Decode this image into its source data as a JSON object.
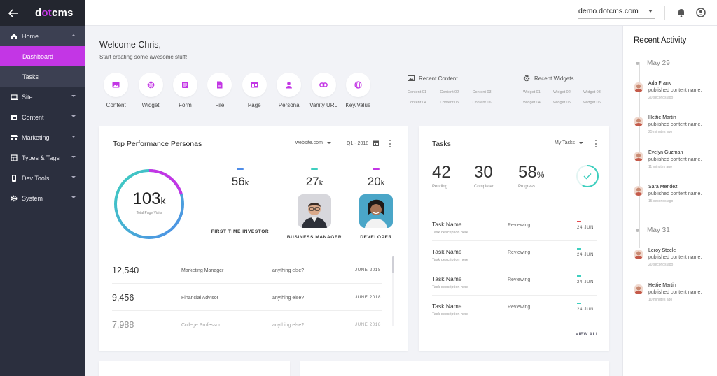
{
  "colors": {
    "accent": "#c336e5",
    "sidebar": "#2b2f3e",
    "teal": "#3ecfbf",
    "blue": "#4f8de8",
    "red": "#e5484d"
  },
  "sidebar": {
    "logo_prefix": "d",
    "logo_dot": "ot",
    "logo_suffix": "cms",
    "items": [
      {
        "label": "Home",
        "icon": "home-icon"
      },
      {
        "label": "Site",
        "icon": "monitor-icon"
      },
      {
        "label": "Content",
        "icon": "folder-icon"
      },
      {
        "label": "Marketing",
        "icon": "store-icon"
      },
      {
        "label": "Types & Tags",
        "icon": "layers-icon"
      },
      {
        "label": "Dev Tools",
        "icon": "device-icon"
      },
      {
        "label": "System",
        "icon": "gear-icon"
      }
    ],
    "sub_items": [
      {
        "label": "Dashboard"
      },
      {
        "label": "Tasks"
      }
    ]
  },
  "header": {
    "site": "demo.dotcms.com"
  },
  "welcome": {
    "title": "Welcome Chris,",
    "subtitle": "Start creating some awesome stuff!"
  },
  "tools": [
    {
      "label": "Content",
      "icon": "image-icon"
    },
    {
      "label": "Widget",
      "icon": "gear-icon"
    },
    {
      "label": "Form",
      "icon": "form-icon"
    },
    {
      "label": "File",
      "icon": "file-icon"
    },
    {
      "label": "Page",
      "icon": "page-icon"
    },
    {
      "label": "Persona",
      "icon": "person-icon"
    },
    {
      "label": "Vanity URL",
      "icon": "link-icon"
    },
    {
      "label": "Key/Value",
      "icon": "globe-icon"
    }
  ],
  "recent_content": {
    "title": "Recent Content",
    "items": [
      "Content 01",
      "Content 02",
      "Content 03",
      "Content 04",
      "Content 05",
      "Content 06"
    ]
  },
  "recent_widgets": {
    "title": "Recent Widgets",
    "items": [
      "Widget 01",
      "Widget 02",
      "Widget 03",
      "Widget 04",
      "Widget 05",
      "Widget 06"
    ]
  },
  "personas": {
    "title": "Top Performance Personas",
    "filter_site": "website.com",
    "filter_period": "Q1 - 2018",
    "total_value": "103",
    "total_unit": "k",
    "total_label": "Total Page Visits",
    "list": [
      {
        "value": "56",
        "unit": "k",
        "name": "FIRST TIME INVESTOR",
        "color": "#4f8de8"
      },
      {
        "value": "27",
        "unit": "k",
        "name": "BUSINESS MANAGER",
        "color": "#3ecfbf"
      },
      {
        "value": "20",
        "unit": "k",
        "name": "DEVELOPER",
        "color": "#c336e5"
      }
    ],
    "table": [
      {
        "value": "12,540",
        "role": "Marketing Manager",
        "note": "anything else?",
        "date": "JUNE 2018"
      },
      {
        "value": "9,456",
        "role": "Financial Advisor",
        "note": "anything else?",
        "date": "JUNE 2018"
      },
      {
        "value": "7,988",
        "role": "College Professor",
        "note": "anything else?",
        "date": "JUNE 2018"
      }
    ]
  },
  "tasks": {
    "title": "Tasks",
    "filter": "My Tasks",
    "pending_value": "42",
    "pending_label": "Pending",
    "completed_value": "30",
    "completed_label": "Completed",
    "progress_value": "58",
    "progress_unit": "%",
    "progress_label": "Progress",
    "progress_fraction": 0.58,
    "list": [
      {
        "name": "Task Name",
        "desc": "Task description here",
        "status": "Reviewing",
        "date": "24 JUN",
        "color": "#e5484d"
      },
      {
        "name": "Task Name",
        "desc": "Task description here",
        "status": "Reviewing",
        "date": "24 JUN",
        "color": "#3ecfbf"
      },
      {
        "name": "Task Name",
        "desc": "Task description here",
        "status": "Reviewing",
        "date": "24 JUN",
        "color": "#3ecfbf"
      },
      {
        "name": "Task Name",
        "desc": "Task description here",
        "status": "Reviewing",
        "date": "24 JUN",
        "color": "#3ecfbf"
      }
    ],
    "view_all": "VIEW ALL"
  },
  "activity": {
    "title": "Recent Activity",
    "groups": [
      {
        "date": "May 29",
        "items": [
          {
            "name": "Ada Frank",
            "action": "published content name.",
            "time": "20 seconds ago"
          },
          {
            "name": "Hettie Martin",
            "action": "published content name.",
            "time": "25 minutes ago"
          },
          {
            "name": "Evelyn Guzman",
            "action": "published content name.",
            "time": "11 minutes ago"
          },
          {
            "name": "Sara Mendez",
            "action": "published content name.",
            "time": "15 seconds ago"
          }
        ]
      },
      {
        "date": "May 31",
        "items": [
          {
            "name": "Leroy Steele",
            "action": "published content name.",
            "time": "20 seconds ago"
          },
          {
            "name": "Hettie Martin",
            "action": "published content name.",
            "time": "10 minutes ago"
          }
        ]
      }
    ]
  }
}
